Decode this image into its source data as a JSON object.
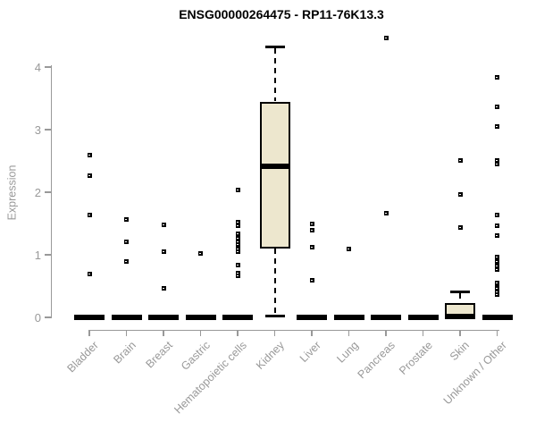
{
  "title": "ENSG00000264475 - RP11-76K13.3",
  "chart_data": {
    "type": "boxplot",
    "title": "ENSG00000264475 - RP11-76K13.3",
    "xlabel": "",
    "ylabel": "Expression",
    "ylim": [
      0,
      4.5
    ],
    "y_ticks": [
      0,
      1,
      2,
      3,
      4
    ],
    "grid": "off",
    "legend": "none",
    "categories": [
      "Bladder",
      "Brain",
      "Breast",
      "Gastric",
      "Hematopoietic cells",
      "Kidney",
      "Liver",
      "Lung",
      "Pancreas",
      "Prostate",
      "Skin",
      "Unknown / Other"
    ],
    "series": [
      {
        "category": "Bladder",
        "low": 0,
        "q1": 0,
        "median": 0,
        "q3": 0,
        "high": 0,
        "outliers": [
          2.6,
          2.26,
          1.64,
          0.69
        ]
      },
      {
        "category": "Brain",
        "low": 0,
        "q1": 0,
        "median": 0,
        "q3": 0,
        "high": 0,
        "outliers": [
          1.56,
          1.21,
          0.89
        ]
      },
      {
        "category": "Breast",
        "low": 0,
        "q1": 0,
        "median": 0,
        "q3": 0,
        "high": 0,
        "outliers": [
          1.48,
          1.05,
          0.47
        ]
      },
      {
        "category": "Gastric",
        "low": 0,
        "q1": 0,
        "median": 0,
        "q3": 0,
        "high": 0,
        "outliers": [
          1.02
        ]
      },
      {
        "category": "Hematopoietic cells",
        "low": 0,
        "q1": 0,
        "median": 0,
        "q3": 0,
        "high": 0,
        "outliers": [
          2.03,
          1.52,
          1.46,
          1.33,
          1.27,
          1.21,
          1.16,
          1.1,
          1.05,
          0.83,
          0.71,
          0.66
        ]
      },
      {
        "category": "Kidney",
        "low": 0.02,
        "q1": 1.1,
        "median": 2.42,
        "q3": 3.45,
        "high": 4.32,
        "outliers": []
      },
      {
        "category": "Liver",
        "low": 0,
        "q1": 0,
        "median": 0,
        "q3": 0,
        "high": 0,
        "outliers": [
          1.5,
          1.4,
          1.12,
          0.6
        ]
      },
      {
        "category": "Lung",
        "low": 0,
        "q1": 0,
        "median": 0,
        "q3": 0,
        "high": 0,
        "outliers": [
          1.1
        ]
      },
      {
        "category": "Pancreas",
        "low": 0,
        "q1": 0,
        "median": 0,
        "q3": 0,
        "high": 0,
        "outliers": [
          4.47,
          1.67
        ]
      },
      {
        "category": "Prostate",
        "low": 0,
        "q1": 0,
        "median": 0,
        "q3": 0,
        "high": 0,
        "outliers": []
      },
      {
        "category": "Skin",
        "low": 0,
        "q1": 0,
        "median": 0.02,
        "q3": 0.23,
        "high": 0.41,
        "outliers": [
          2.51,
          1.96,
          1.43
        ]
      },
      {
        "category": "Unknown / Other",
        "low": 0,
        "q1": 0,
        "median": 0,
        "q3": 0,
        "high": 0,
        "outliers": [
          3.84,
          3.37,
          3.05,
          2.51,
          2.45,
          1.63,
          1.46,
          1.31,
          0.96,
          0.9,
          0.82,
          0.76,
          0.55,
          0.5,
          0.46,
          0.41,
          0.36
        ]
      }
    ],
    "colors": {
      "box_fill": "#EDE7CE",
      "box_border": "#000000",
      "median": "#000000",
      "outlier": "#000000",
      "axis": "#999999",
      "tick_label": "#999999",
      "title": "#000000"
    }
  }
}
